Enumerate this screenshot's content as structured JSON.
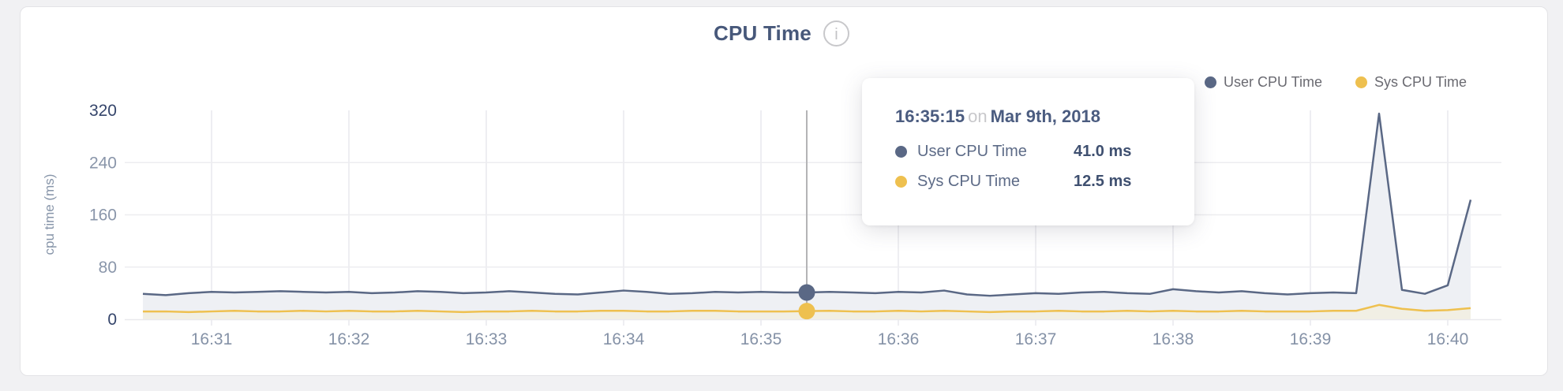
{
  "header": {
    "title": "CPU Time",
    "info_icon": "i"
  },
  "legend": {
    "items": [
      {
        "label": "User CPU Time",
        "color": "#5a6885"
      },
      {
        "label": "Sys CPU Time",
        "color": "#eec04f"
      }
    ]
  },
  "tooltip": {
    "time": "16:35:15",
    "connector": "on",
    "date": "Mar 9th, 2018",
    "rows": [
      {
        "label": "User CPU Time",
        "value": "41.0 ms",
        "color": "#5a6885"
      },
      {
        "label": "Sys CPU Time",
        "value": "12.5 ms",
        "color": "#eec04f"
      }
    ]
  },
  "chart_data": {
    "type": "area",
    "title": "CPU Time",
    "ylabel": "cpu time (ms)",
    "ylim": [
      0,
      320
    ],
    "yticks": [
      0,
      80,
      160,
      240,
      320
    ],
    "xticks": [
      "16:31",
      "16:32",
      "16:33",
      "16:34",
      "16:35",
      "16:36",
      "16:37",
      "16:38",
      "16:39",
      "16:40"
    ],
    "x_start": "16:30:30",
    "x_interval_seconds": 10,
    "grid": true,
    "legend_position": "top-right",
    "grid_color": "#e9e9ed",
    "hgrid_color": "#ededf0",
    "crosshair_color": "#b4b4b6",
    "axis": {
      "tick_dark": "#35456b",
      "tick_light": "#8a96aa",
      "xtick_color": "#8592a7",
      "label_color": "#8795a9"
    },
    "series": [
      {
        "name": "User CPU Time",
        "color": "#5a6885",
        "fill": "#eef0f4",
        "values": [
          39,
          37,
          40,
          42,
          41,
          42,
          43,
          42,
          41,
          42,
          40,
          41,
          43,
          42,
          40,
          41,
          43,
          41,
          39,
          38,
          41,
          44,
          42,
          39,
          40,
          42,
          41,
          42,
          41,
          41,
          42,
          41,
          40,
          42,
          41,
          44,
          38,
          36,
          38,
          40,
          39,
          41,
          42,
          40,
          39,
          46,
          43,
          41,
          43,
          40,
          38,
          40,
          41,
          40,
          315,
          45,
          39,
          52,
          183
        ]
      },
      {
        "name": "Sys CPU Time",
        "color": "#eec04f",
        "fill": "#f1efe4",
        "values": [
          12,
          12,
          11,
          12,
          13,
          12,
          12,
          13,
          12,
          13,
          12,
          12,
          13,
          12,
          11,
          12,
          12,
          13,
          12,
          12,
          13,
          13,
          12,
          12,
          13,
          13,
          12,
          12,
          12,
          12.5,
          13,
          12,
          12,
          13,
          12,
          13,
          12,
          11,
          12,
          12,
          13,
          12,
          12,
          13,
          12,
          13,
          12,
          12,
          13,
          12,
          12,
          12,
          13,
          13,
          22,
          16,
          13,
          14,
          17
        ]
      }
    ],
    "hover": {
      "index": 29,
      "time": "16:35:15",
      "date": "Mar 9th, 2018",
      "user_value_ms": 41.0,
      "sys_value_ms": 12.5
    }
  }
}
